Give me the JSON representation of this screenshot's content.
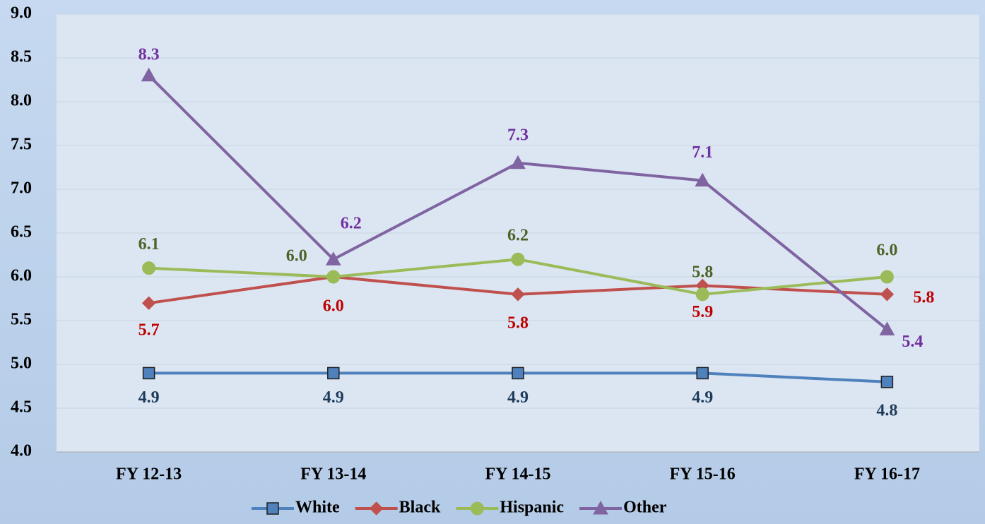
{
  "chart_data": {
    "type": "line",
    "categories": [
      "FY 12-13",
      "FY 13-14",
      "FY 14-15",
      "FY 15-16",
      "FY 16-17"
    ],
    "series": [
      {
        "name": "White",
        "color": "#4f81bd",
        "label_color": "#1f3b5c",
        "marker": "square",
        "values": [
          4.9,
          4.9,
          4.9,
          4.9,
          4.8
        ],
        "value_labels": [
          "4.9",
          "4.9",
          "4.9",
          "4.9",
          "4.8"
        ]
      },
      {
        "name": "Black",
        "color": "#c0504d",
        "label_color": "#c00000",
        "marker": "diamond",
        "values": [
          5.7,
          6.0,
          5.8,
          5.9,
          5.8
        ],
        "value_labels": [
          "5.7",
          "6.0",
          "5.8",
          "5.9",
          "5.8"
        ]
      },
      {
        "name": "Hispanic",
        "color": "#9bbb59",
        "label_color": "#4f6228",
        "marker": "circle",
        "values": [
          6.1,
          6.0,
          6.2,
          5.8,
          6.0
        ],
        "value_labels": [
          "6.1",
          "6.0",
          "6.2",
          "5.8",
          "6.0"
        ]
      },
      {
        "name": "Other",
        "color": "#8064a2",
        "label_color": "#7030a0",
        "marker": "triangle",
        "values": [
          8.3,
          6.2,
          7.3,
          7.1,
          5.4
        ],
        "value_labels": [
          "8.3",
          "6.2",
          "7.3",
          "7.1",
          "5.4"
        ]
      }
    ],
    "ylim": [
      4,
      9
    ],
    "yticks": [
      {
        "value": 4,
        "label": "4.0"
      },
      {
        "value": 4.5,
        "label": "4.5"
      },
      {
        "value": 5,
        "label": "5.0"
      },
      {
        "value": 5.5,
        "label": "5.5"
      },
      {
        "value": 6,
        "label": "6.0"
      },
      {
        "value": 6.5,
        "label": "6.5"
      },
      {
        "value": 7,
        "label": "7.0"
      },
      {
        "value": 7.5,
        "label": "7.5"
      },
      {
        "value": 8,
        "label": "8.0"
      },
      {
        "value": 8.5,
        "label": "8.5"
      },
      {
        "value": 9,
        "label": "9.0"
      }
    ],
    "grid": true,
    "legend": "bottom"
  }
}
